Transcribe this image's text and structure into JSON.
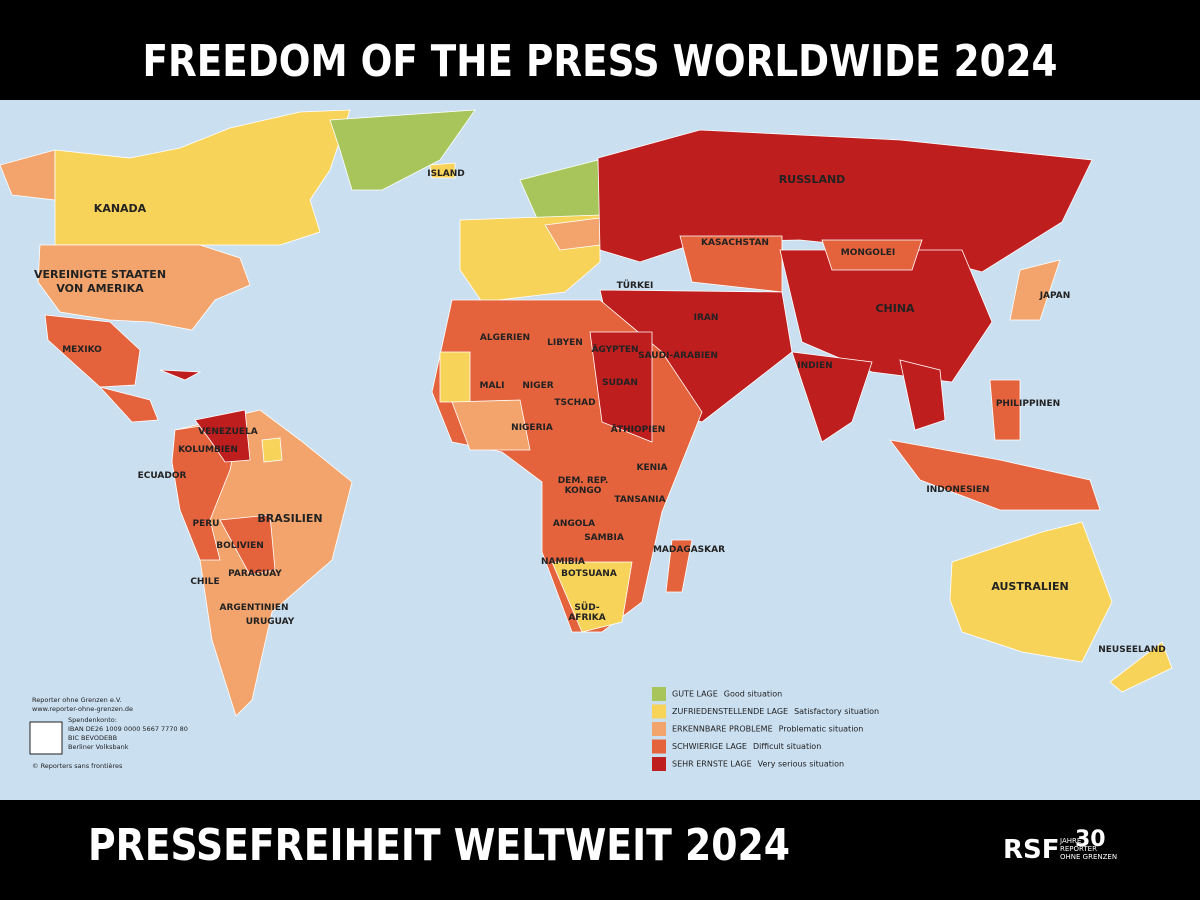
{
  "header": {
    "title": "FREEDOM OF THE PRESS WORLDWIDE 2024"
  },
  "footer": {
    "title": "PRESSEFREIHEIT WELTWEIT 2024",
    "logo": "RSF",
    "logo_years": "30",
    "logo_text": [
      "JAHRE",
      "REPORTER",
      "OHNE GRENZEN"
    ]
  },
  "legend": [
    {
      "label": "GUTE LAGE",
      "translation": "Good situation",
      "color": "#a7c55a"
    },
    {
      "label": "ZUFRIEDENSTELLENDE LAGE",
      "translation": "Satisfactory situation",
      "color": "#f8d35a"
    },
    {
      "label": "ERKENNBARE PROBLEME",
      "translation": "Problematic situation",
      "color": "#f2a46c"
    },
    {
      "label": "SCHWIERIGE LAGE",
      "translation": "Difficult situation",
      "color": "#e4633d"
    },
    {
      "label": "SEHR ERNSTE LAGE",
      "translation": "Very serious situation",
      "color": "#bf1e1e"
    }
  ],
  "credits": [
    "Reporter ohne Grenzen e.V.",
    "www.reporter-ohne-grenzen.de",
    "Spendenkonto:",
    "IBAN DE26 1009 0000 5667 7770 80",
    "BIC BEVODEBB",
    "Berliner Volksbank",
    "© Reporters sans frontières"
  ],
  "map": {
    "countries": [
      "KANADA",
      "VEREINIGTE STAATEN",
      "VON AMERIKA",
      "MEXIKO",
      "VENEZUELA",
      "KOLUMBIEN",
      "ECUADOR",
      "BRASILIEN",
      "PERU",
      "BOLIVIEN",
      "PARAGUAY",
      "CHILE",
      "ARGENTINIEN",
      "URUGUAY",
      "ISLAND",
      "RUSSLAND",
      "KASACHSTAN",
      "MONGOLEI",
      "CHINA",
      "INDIEN",
      "ALGERIEN",
      "LIBYEN",
      "ÄGYPTEN",
      "SUDAN",
      "NIGER",
      "MALI",
      "TSCHAD",
      "NIGERIA",
      "ÄTHIOPIEN",
      "KENIA",
      "DEM. REP.",
      "KONGO",
      "TANSANIA",
      "ANGOLA",
      "SAMBIA",
      "NAMIBIA",
      "BOTSUANA",
      "SÜD-",
      "AFRIKA",
      "MADAGASKAR",
      "INDONESIEN",
      "PHILIPPINEN",
      "AUSTRALIEN",
      "NEUSEELAND",
      "JAPAN",
      "IRAN",
      "SAUDI-ARABIEN",
      "TÜRKEI"
    ]
  }
}
